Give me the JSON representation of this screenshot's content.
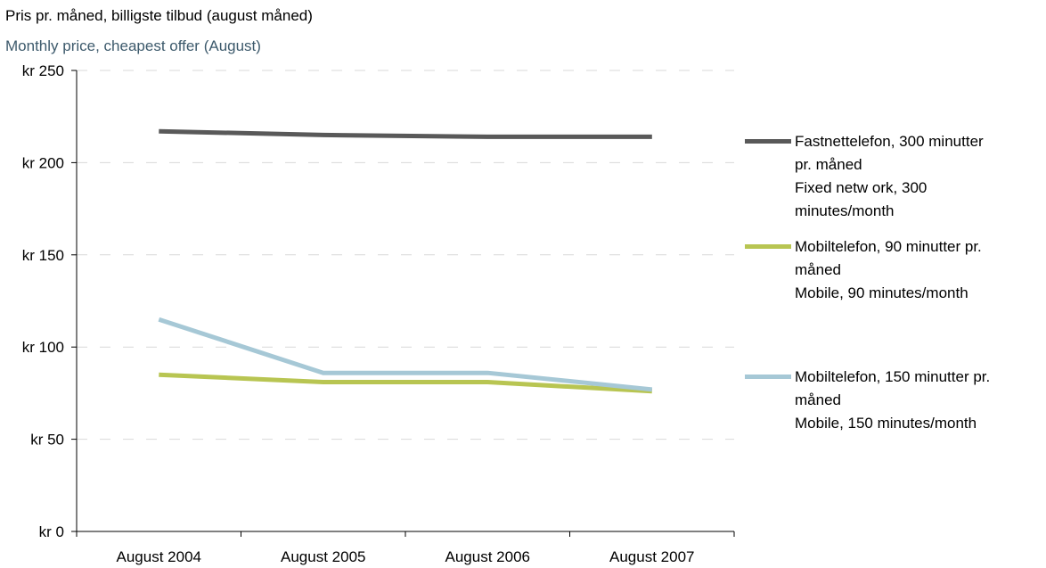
{
  "header": {
    "title_no": "Pris pr. måned, billigste tilbud (august måned)",
    "title_en": "Monthly price, cheapest offer (August)"
  },
  "chart_data": {
    "type": "line",
    "categories": [
      "August 2004",
      "August 2005",
      "August 2006",
      "August 2007"
    ],
    "ylim": [
      0,
      250
    ],
    "yticks": [
      0,
      50,
      100,
      150,
      200,
      250
    ],
    "ytick_labels": [
      "kr 0",
      "kr 50",
      "kr 100",
      "kr 150",
      "kr 200",
      "kr 250"
    ],
    "grid": "horizontal dashed",
    "legend_position": "right",
    "series": [
      {
        "id": "fixed",
        "name_lines": [
          "Fastnettelefon, 300 minutter",
          "pr. måned",
          "Fixed netw ork, 300",
          "minutes/month"
        ],
        "values": [
          217,
          215,
          214,
          214
        ],
        "color": "#595959"
      },
      {
        "id": "mobile90",
        "name_lines": [
          "Mobiltelefon, 90 minutter pr.",
          "måned",
          "Mobile, 90 minutes/month"
        ],
        "values": [
          85,
          81,
          81,
          76
        ],
        "color": "#b8c552"
      },
      {
        "id": "mobile150",
        "name_lines": [
          "Mobiltelefon, 150 minutter pr.",
          "måned",
          "Mobile, 150 minutes/month"
        ],
        "values": [
          115,
          86,
          86,
          77
        ],
        "color": "#a6c8d6"
      }
    ]
  }
}
